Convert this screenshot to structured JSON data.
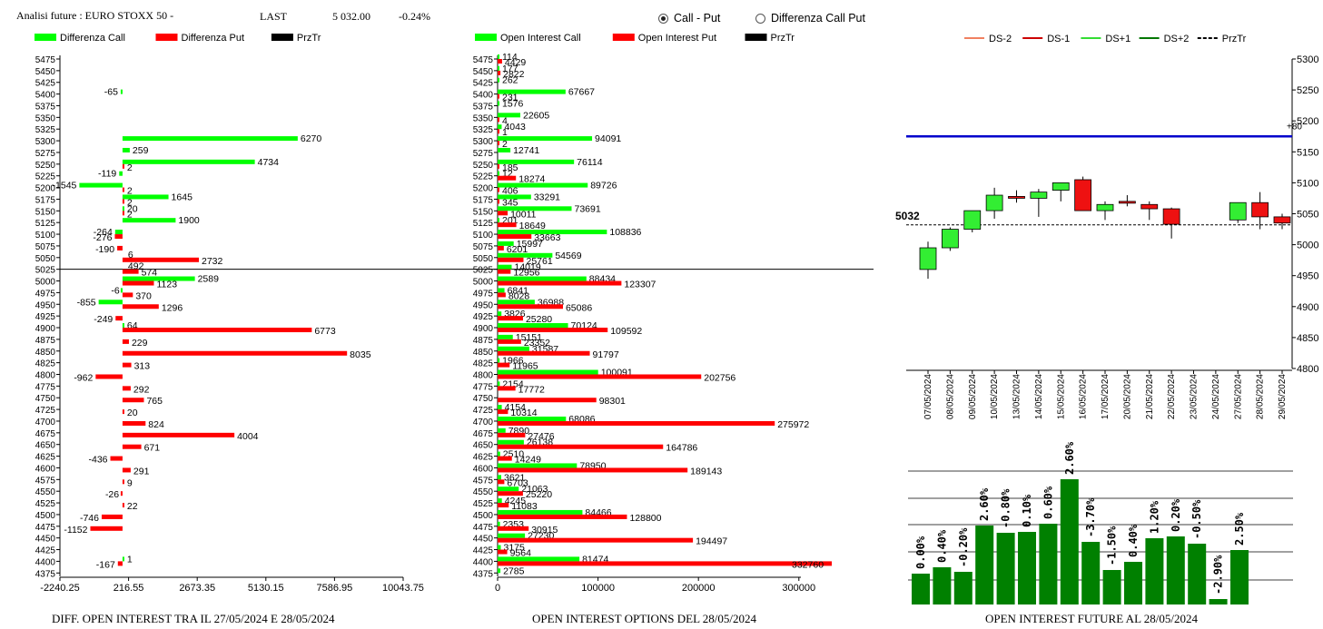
{
  "header": {
    "title": "Analisi future : EURO STOXX 50 -",
    "last_label": "LAST",
    "last_value": "5 032.00",
    "change": "-0.24%"
  },
  "radios": [
    {
      "label": "Call - Put",
      "selected": true
    },
    {
      "label": "Differenza Call Put",
      "selected": false
    }
  ],
  "colors": {
    "call": "#00ff00",
    "put": "#ff0000",
    "prztr": "#000000",
    "future_bar": "#008000",
    "ref_line": "#0000cc"
  },
  "strikes": [
    5475,
    5450,
    5425,
    5400,
    5375,
    5350,
    5325,
    5300,
    5275,
    5250,
    5225,
    5200,
    5175,
    5150,
    5125,
    5100,
    5075,
    5050,
    5025,
    5000,
    4975,
    4950,
    4925,
    4900,
    4875,
    4850,
    4825,
    4800,
    4775,
    4750,
    4725,
    4700,
    4675,
    4650,
    4625,
    4600,
    4575,
    4550,
    4525,
    4500,
    4475,
    4450,
    4425,
    4400,
    4375
  ],
  "chart_data": [
    {
      "type": "bar",
      "orientation": "horizontal",
      "legend": [
        "Differenza Call",
        "Differenza Put",
        "PrzTr"
      ],
      "x_ticks": [
        "-2240.25",
        "216.55",
        "2673.35",
        "5130.15",
        "7586.95",
        "10043.75"
      ],
      "x_tick_values": [
        -2240.25,
        216.55,
        2673.35,
        5130.15,
        7586.95,
        10043.75
      ],
      "prztr_strike": 5025,
      "call_diff": [
        null,
        null,
        null,
        -65,
        null,
        null,
        null,
        6270,
        259,
        4734,
        -119,
        -1545,
        1645,
        20,
        1900,
        -264,
        null,
        null,
        null,
        2589,
        -6,
        -855,
        null,
        64,
        null,
        null,
        null,
        null,
        null,
        null,
        null,
        null,
        null,
        null,
        null,
        null,
        null,
        null,
        null,
        null,
        null,
        null,
        null,
        1,
        null
      ],
      "put_diff": [
        null,
        null,
        null,
        null,
        null,
        null,
        null,
        null,
        null,
        2,
        null,
        2,
        2,
        2,
        null,
        -276,
        -190,
        2732,
        574,
        1123,
        370,
        1296,
        -249,
        6773,
        229,
        8035,
        313,
        -962,
        292,
        765,
        20,
        824,
        4004,
        671,
        -436,
        291,
        9,
        -26,
        22,
        -746,
        -1152,
        null,
        null,
        -167,
        null
      ],
      "labels_extra": [
        {
          "strike": 5050,
          "text": "6"
        },
        {
          "strike": 5025,
          "text": "492"
        }
      ],
      "footer": "DIFF. OPEN INTEREST TRA IL 27/05/2024 E 28/05/2024"
    },
    {
      "type": "bar",
      "orientation": "horizontal",
      "legend": [
        "Open Interest Call",
        "Open Interest Put",
        "PrzTr"
      ],
      "x_ticks": [
        "0",
        "100000",
        "200000",
        "300000"
      ],
      "x_tick_values": [
        0,
        100000,
        200000,
        300000
      ],
      "prztr_strike": 5025,
      "call_oi": [
        114,
        177,
        262,
        67667,
        1576,
        22605,
        4043,
        94091,
        12741,
        76114,
        12,
        89726,
        33291,
        73691,
        201,
        108836,
        15997,
        54569,
        14019,
        88434,
        6841,
        36988,
        3826,
        70124,
        15151,
        31587,
        1966,
        100091,
        2154,
        null,
        4154,
        68086,
        7890,
        26138,
        2510,
        78950,
        3621,
        21063,
        4245,
        84466,
        2353,
        27230,
        3175,
        81474,
        2785
      ],
      "put_oi": [
        4429,
        2822,
        null,
        231,
        null,
        4,
        1,
        2,
        null,
        185,
        18274,
        406,
        345,
        10011,
        18649,
        33663,
        6201,
        25761,
        12956,
        123307,
        8028,
        65086,
        25280,
        109592,
        23352,
        91797,
        11965,
        202756,
        17772,
        98301,
        10314,
        275972,
        27476,
        164786,
        14249,
        189143,
        6703,
        25220,
        11083,
        128800,
        30915,
        194497,
        9564,
        332760,
        null
      ],
      "footer": "OPEN INTEREST OPTIONS DEL 28/05/2024"
    },
    {
      "type": "candlestick",
      "legend": [
        "DS-2",
        "DS-1",
        "DS+1",
        "DS+2",
        "PrzTr"
      ],
      "dates": [
        "07/05/2024",
        "08/05/2024",
        "09/05/2024",
        "10/05/2024",
        "13/05/2024",
        "14/05/2024",
        "15/05/2024",
        "16/05/2024",
        "17/05/2024",
        "20/05/2024",
        "21/05/2024",
        "22/05/2024",
        "23/05/2024",
        "24/05/2024",
        "27/05/2024",
        "28/05/2024",
        "29/05/2024"
      ],
      "ohlc": [
        [
          4960,
          5005,
          4945,
          4995
        ],
        [
          4995,
          5028,
          4990,
          5025
        ],
        [
          5025,
          5055,
          5020,
          5055
        ],
        [
          5055,
          5092,
          5042,
          5080
        ],
        [
          5078,
          5088,
          5068,
          5075
        ],
        [
          5075,
          5090,
          5045,
          5085
        ],
        [
          5088,
          5100,
          5070,
          5100
        ],
        [
          5105,
          5110,
          5055,
          5055
        ],
        [
          5055,
          5070,
          5040,
          5065
        ],
        [
          5070,
          5080,
          5062,
          5068
        ],
        [
          5065,
          5070,
          5040,
          5058
        ],
        [
          5058,
          5060,
          5010,
          5033
        ],
        null,
        null,
        [
          5040,
          5068,
          5035,
          5068
        ],
        [
          5068,
          5085,
          5025,
          5045
        ],
        [
          5045,
          5050,
          5025,
          5035
        ]
      ],
      "y_ticks": [
        4800,
        4850,
        4900,
        4950,
        5000,
        5050,
        5100,
        5150,
        5200,
        5250,
        5300
      ],
      "ylim": [
        4800,
        5300
      ],
      "reference_line": {
        "value": 5175,
        "label": "+80"
      },
      "last_line": {
        "value": 5032,
        "label": "5032"
      }
    },
    {
      "type": "bar",
      "labels": [
        "0.00%",
        "0.40%",
        "-0.20%",
        "2.60%",
        "-0.80%",
        "0.10%",
        "0.60%",
        "2.60%",
        "-3.70%",
        "-1.50%",
        "0.40%",
        "1.20%",
        "0.20%",
        "-0.50%",
        "-2.90%",
        "2.50%"
      ],
      "values": [
        34,
        41,
        36,
        87,
        79,
        80,
        89,
        138,
        69,
        38,
        47,
        73,
        75,
        67,
        6,
        60
      ],
      "footer": "OPEN INTEREST FUTURE AL 28/05/2024"
    }
  ]
}
